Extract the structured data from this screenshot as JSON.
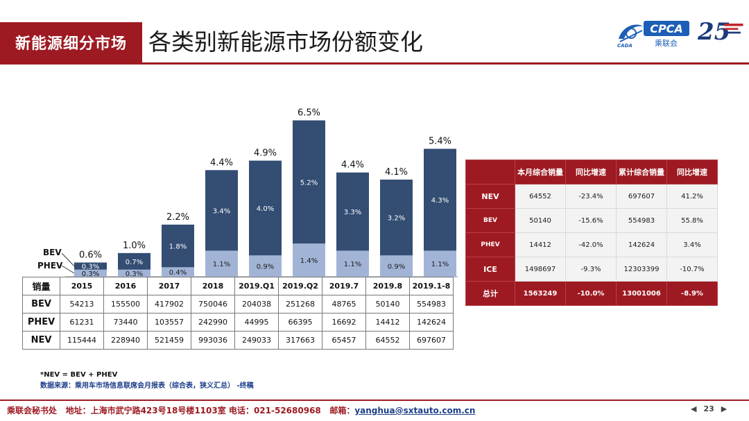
{
  "header": {
    "section_label": "新能源细分市场",
    "title": "各类别新能源市场份额变化"
  },
  "logos": {
    "cpca_badge": "CPCA",
    "cpca_sub": "乘联会",
    "cada_label": "CADA",
    "anniversary_number": "25"
  },
  "colors": {
    "brand_red": "#9e1a22",
    "bev_bar": "#334d73",
    "phev_bar": "#a2b4d6"
  },
  "chart_data": {
    "type": "bar",
    "stacked": true,
    "categories": [
      "2015",
      "2016",
      "2017",
      "2018",
      "2019.Q1",
      "2019.Q2",
      "2019.7",
      "2019.8",
      "2019.1-8"
    ],
    "series": [
      {
        "name": "PHEV",
        "values": [
          0.3,
          0.3,
          0.4,
          1.1,
          0.9,
          1.4,
          1.1,
          0.9,
          1.1
        ]
      },
      {
        "name": "BEV",
        "values": [
          0.3,
          0.7,
          1.8,
          3.4,
          4.0,
          5.2,
          3.3,
          3.2,
          4.3
        ]
      }
    ],
    "totals": [
      0.6,
      1.0,
      2.2,
      4.4,
      4.9,
      6.5,
      4.4,
      4.1,
      5.4
    ],
    "unit": "%",
    "value_labels": {
      "PHEV": [
        "0.3%",
        "0.3%",
        "0.4%",
        "1.1%",
        "0.9%",
        "1.4%",
        "1.1%",
        "0.9%",
        "1.1%"
      ],
      "BEV": [
        "0.3%",
        "0.7%",
        "1.8%",
        "3.4%",
        "4.0%",
        "5.2%",
        "3.3%",
        "3.2%",
        "4.3%"
      ],
      "total": [
        "0.6%",
        "1.0%",
        "2.2%",
        "4.4%",
        "4.9%",
        "6.5%",
        "4.4%",
        "4.1%",
        "5.4%"
      ]
    },
    "legend_callouts": [
      "BEV",
      "PHEV"
    ],
    "ylim": [
      0,
      7
    ],
    "grid": false
  },
  "sales_table": {
    "header_label": "销量",
    "columns": [
      "2015",
      "2016",
      "2017",
      "2018",
      "2019.Q1",
      "2019.Q2",
      "2019.7",
      "2019.8",
      "2019.1-8"
    ],
    "rows": [
      {
        "label": "BEV",
        "values": [
          "54213",
          "155500",
          "417902",
          "750046",
          "204038",
          "251268",
          "48765",
          "50140",
          "554983"
        ]
      },
      {
        "label": "PHEV",
        "values": [
          "61231",
          "73440",
          "103557",
          "242990",
          "44995",
          "66395",
          "16692",
          "14412",
          "142624"
        ]
      },
      {
        "label": "NEV",
        "values": [
          "115444",
          "228940",
          "521459",
          "993036",
          "249033",
          "317663",
          "65457",
          "64552",
          "697607"
        ]
      }
    ]
  },
  "notes": {
    "formula": "*NEV = BEV + PHEV",
    "source": "数据来源：乘用车市场信息联席会月报表（综合表，狭义汇总） -终稿"
  },
  "summary_table": {
    "headers": [
      "",
      "本月综合销量",
      "同比增速",
      "累计综合销量",
      "同比增速"
    ],
    "rows": [
      {
        "label": "NEV",
        "values": [
          "64552",
          "-23.4%",
          "697607",
          "41.2%"
        ]
      },
      {
        "label": "BEV",
        "values": [
          "50140",
          "-15.6%",
          "554983",
          "55.8%"
        ]
      },
      {
        "label": "PHEV",
        "values": [
          "14412",
          "-42.0%",
          "142624",
          "3.4%"
        ]
      },
      {
        "label": "ICE",
        "values": [
          "1498697",
          "-9.3%",
          "12303399",
          "-10.7%"
        ]
      },
      {
        "label": "总计",
        "values": [
          "1563249",
          "-10.0%",
          "13001006",
          "-8.9%"
        ]
      }
    ]
  },
  "footer": {
    "org": "乘联会秘书处",
    "address_label": "地址：",
    "address": "上海市武宁路423号18号楼1103室",
    "phone_label": "电话：",
    "phone": "021-52680968",
    "email_label": "邮箱：",
    "email": "yanghua@sxtauto.com.cn",
    "page_number": "23",
    "prev_icon": "◀",
    "next_icon": "▶"
  }
}
